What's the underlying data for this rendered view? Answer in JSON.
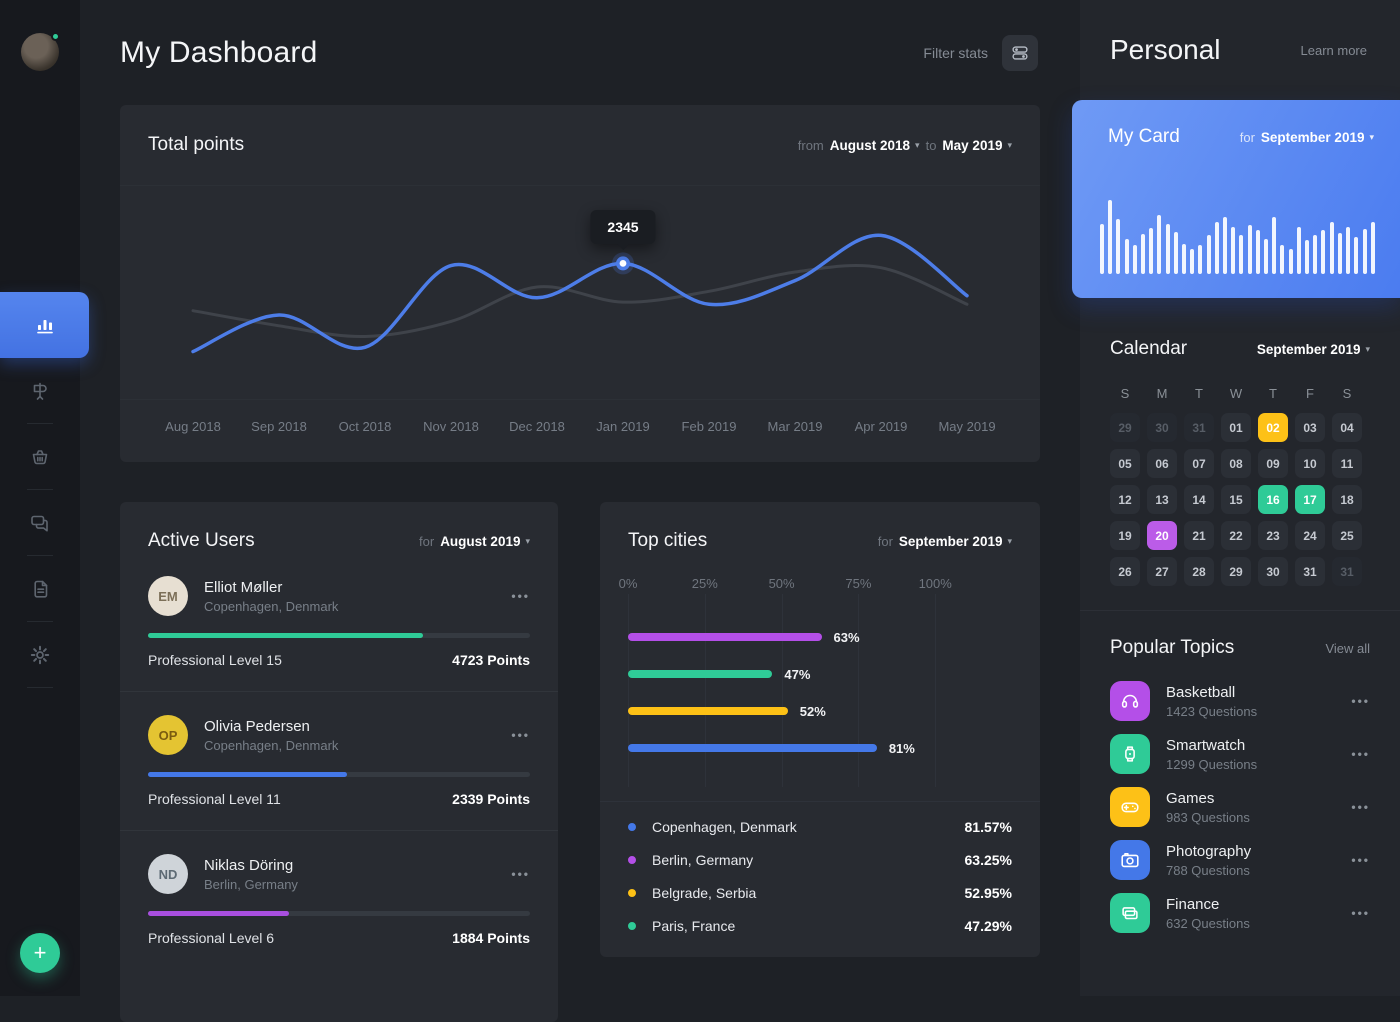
{
  "header": {
    "title": "My Dashboard",
    "filter_label": "Filter stats"
  },
  "sidebar": {
    "add_label": "+",
    "nav": [
      {
        "name": "stats",
        "active": true
      },
      {
        "name": "signpost",
        "active": false
      },
      {
        "name": "basket",
        "active": false
      },
      {
        "name": "messages",
        "active": false
      },
      {
        "name": "documents",
        "active": false
      },
      {
        "name": "settings",
        "active": false
      }
    ]
  },
  "total_points": {
    "title": "Total points",
    "from_label": "from",
    "from_value": "August 2018",
    "to_label": "to",
    "to_value": "May 2019",
    "tooltip_value": "2345",
    "chart_data": {
      "type": "line",
      "x": [
        "Aug 2018",
        "Sep 2018",
        "Oct 2018",
        "Nov 2018",
        "Dec 2018",
        "Jan 2019",
        "Feb 2019",
        "Mar 2019",
        "Apr 2019",
        "May 2019"
      ],
      "series": [
        {
          "name": "points",
          "color": "#4d7de8",
          "values": [
            23,
            40,
            25,
            63,
            48,
            64,
            45,
            56,
            77,
            49
          ]
        },
        {
          "name": "previous",
          "color": "#3f434a",
          "values": [
            42,
            35,
            30,
            37,
            53,
            46,
            51,
            60,
            62,
            45
          ]
        }
      ],
      "highlight": {
        "x_index": 5,
        "label": "2345"
      },
      "ylim": [
        0,
        100
      ],
      "grid": true,
      "legend": "none"
    }
  },
  "active_users": {
    "title": "Active Users",
    "for_label": "for",
    "period": "August 2019",
    "menu_glyph": "•••",
    "users": [
      {
        "name": "Elliot Møller",
        "location": "Copenhagen, Denmark",
        "level": "Professional Level 15",
        "points": "4723 Points",
        "progress": 72,
        "color": "#2fcb97",
        "initials": "EM",
        "avatar_bg": "#e7dfd2",
        "avatar_fg": "#7c6f58"
      },
      {
        "name": "Olivia Pedersen",
        "location": "Copenhagen, Denmark",
        "level": "Professional Level 11",
        "points": "2339 Points",
        "progress": 52,
        "color": "#4478e8",
        "initials": "OP",
        "avatar_bg": "#e4c432",
        "avatar_fg": "#7a5c10"
      },
      {
        "name": "Niklas Döring",
        "location": "Berlin, Germany",
        "level": "Professional Level 6",
        "points": "1884 Points",
        "progress": 37,
        "color": "#a94fe0",
        "initials": "ND",
        "avatar_bg": "#cfd4d9",
        "avatar_fg": "#5d6a74"
      }
    ]
  },
  "top_cities": {
    "title": "Top cities",
    "for_label": "for",
    "period": "September 2019",
    "chart_data": {
      "type": "bar",
      "orientation": "horizontal",
      "axis_ticks": [
        "0%",
        "25%",
        "50%",
        "75%",
        "100%"
      ],
      "xlim": [
        0,
        100
      ],
      "bars": [
        {
          "label": "63%",
          "value": 63,
          "color": "#b44fe8"
        },
        {
          "label": "47%",
          "value": 47,
          "color": "#2fcb97"
        },
        {
          "label": "52%",
          "value": 52,
          "color": "#fdc116"
        },
        {
          "label": "81%",
          "value": 81,
          "color": "#4478e8"
        }
      ]
    },
    "legend": [
      {
        "city": "Copenhagen, Denmark",
        "value": "81.57%",
        "color": "#4478e8"
      },
      {
        "city": "Berlin, Germany",
        "value": "63.25%",
        "color": "#b44fe8"
      },
      {
        "city": "Belgrade, Serbia",
        "value": "52.95%",
        "color": "#fdc116"
      },
      {
        "city": "Paris, France",
        "value": "47.29%",
        "color": "#2fcb97"
      }
    ]
  },
  "personal": {
    "title": "Personal",
    "learn_more": "Learn more",
    "my_card": {
      "title": "My Card",
      "for_label": "for",
      "period": "September 2019",
      "chart_data": {
        "type": "bar",
        "bar_color": "#ffffff",
        "values": [
          60,
          88,
          66,
          42,
          34,
          48,
          55,
          70,
          60,
          50,
          36,
          30,
          35,
          47,
          62,
          68,
          56,
          47,
          58,
          52,
          42,
          68,
          34,
          30,
          56,
          40,
          46,
          52,
          62,
          49,
          56,
          44,
          54,
          62
        ]
      }
    },
    "calendar": {
      "title": "Calendar",
      "period": "September 2019",
      "weekdays": [
        "S",
        "M",
        "T",
        "W",
        "T",
        "F",
        "S"
      ],
      "highlight_colors": {
        "yellow": "#fdc117",
        "green": "#2fcb97",
        "purple": "#bb5ce8"
      },
      "days": [
        {
          "label": "29",
          "variant": "muted"
        },
        {
          "label": "30",
          "variant": "muted"
        },
        {
          "label": "31",
          "variant": "muted"
        },
        {
          "label": "01",
          "variant": "normal"
        },
        {
          "label": "02",
          "variant": "yellow"
        },
        {
          "label": "03",
          "variant": "normal"
        },
        {
          "label": "04",
          "variant": "normal"
        },
        {
          "label": "05",
          "variant": "normal"
        },
        {
          "label": "06",
          "variant": "normal"
        },
        {
          "label": "07",
          "variant": "normal"
        },
        {
          "label": "08",
          "variant": "normal"
        },
        {
          "label": "09",
          "variant": "normal"
        },
        {
          "label": "10",
          "variant": "normal"
        },
        {
          "label": "11",
          "variant": "normal"
        },
        {
          "label": "12",
          "variant": "normal"
        },
        {
          "label": "13",
          "variant": "normal"
        },
        {
          "label": "14",
          "variant": "normal"
        },
        {
          "label": "15",
          "variant": "normal"
        },
        {
          "label": "16",
          "variant": "green"
        },
        {
          "label": "17",
          "variant": "green"
        },
        {
          "label": "18",
          "variant": "normal"
        },
        {
          "label": "19",
          "variant": "normal"
        },
        {
          "label": "20",
          "variant": "purple"
        },
        {
          "label": "21",
          "variant": "normal"
        },
        {
          "label": "22",
          "variant": "normal"
        },
        {
          "label": "23",
          "variant": "normal"
        },
        {
          "label": "24",
          "variant": "normal"
        },
        {
          "label": "25",
          "variant": "normal"
        },
        {
          "label": "26",
          "variant": "normal"
        },
        {
          "label": "27",
          "variant": "normal"
        },
        {
          "label": "28",
          "variant": "normal"
        },
        {
          "label": "29",
          "variant": "normal"
        },
        {
          "label": "30",
          "variant": "normal"
        },
        {
          "label": "31",
          "variant": "normal"
        },
        {
          "label": "31",
          "variant": "muted"
        }
      ]
    },
    "topics": {
      "title": "Popular Topics",
      "view_all": "View all",
      "menu_glyph": "•••",
      "items": [
        {
          "title": "Basketball",
          "questions": "1423 Questions",
          "color": "#b44fe8",
          "icon": "headphones-icon"
        },
        {
          "title": "Smartwatch",
          "questions": "1299 Questions",
          "color": "#2fcb97",
          "icon": "smartwatch-icon"
        },
        {
          "title": "Games",
          "questions": "983 Questions",
          "color": "#fdc117",
          "icon": "gamepad-icon"
        },
        {
          "title": "Photography",
          "questions": "788 Questions",
          "color": "#4478e8",
          "icon": "camera-icon"
        },
        {
          "title": "Finance",
          "questions": "632 Questions",
          "color": "#2fcb97",
          "icon": "wallet-icon"
        }
      ]
    }
  }
}
